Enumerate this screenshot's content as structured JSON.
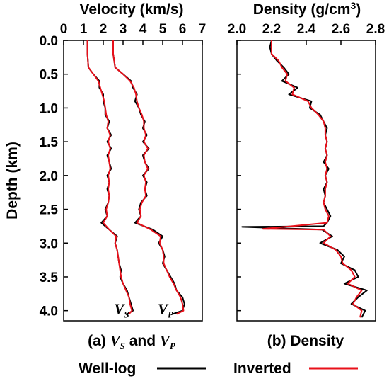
{
  "chart_data": [
    {
      "type": "line",
      "panel_label": "(a)",
      "caption_parts": {
        "prefix": "(a) ",
        "var1": "V",
        "sub1": "S",
        "mid": " and ",
        "var2": "V",
        "sub2": "P"
      },
      "xlabel": "Velocity (km/s)",
      "ylabel": "Depth (km)",
      "xlim": [
        0,
        7
      ],
      "ylim": [
        0,
        4.15
      ],
      "y_inverted": true,
      "xticks": [
        "0",
        "1",
        "2",
        "3",
        "4",
        "5",
        "6",
        "7"
      ],
      "yticks": [
        "0.0",
        "0.5",
        "1.0",
        "1.5",
        "2.0",
        "2.5",
        "3.0",
        "3.5",
        "4.0"
      ],
      "annotations": [
        {
          "var": "V",
          "sub": "S",
          "x": 2.55,
          "y": 4.05
        },
        {
          "var": "V",
          "sub": "P",
          "x": 4.75,
          "y": 4.05
        }
      ],
      "series": [
        {
          "name": "Well-log",
          "color": "#000000",
          "curves": {
            "Vs": {
              "depth": [
                0,
                0.2,
                0.4,
                0.5,
                0.6,
                0.7,
                0.8,
                0.9,
                1.0,
                1.1,
                1.2,
                1.3,
                1.4,
                1.5,
                1.6,
                1.7,
                1.8,
                1.9,
                2.0,
                2.1,
                2.2,
                2.3,
                2.4,
                2.5,
                2.6,
                2.7,
                2.8,
                2.9,
                3.0,
                3.1,
                3.2,
                3.3,
                3.4,
                3.5,
                3.6,
                3.7,
                3.8,
                3.9,
                4.0,
                4.05
              ],
              "value": [
                1.2,
                1.2,
                1.25,
                1.5,
                1.8,
                1.8,
                2.0,
                2.0,
                2.1,
                2.1,
                2.3,
                2.2,
                2.4,
                2.2,
                2.4,
                2.2,
                2.3,
                2.4,
                2.2,
                2.3,
                2.2,
                2.3,
                2.25,
                2.1,
                2.2,
                1.9,
                2.3,
                2.7,
                2.6,
                2.7,
                2.75,
                2.8,
                2.9,
                2.85,
                3.0,
                3.2,
                3.3,
                3.4,
                3.5,
                3.2
              ]
            },
            "Vp": {
              "depth": [
                0,
                0.2,
                0.4,
                0.5,
                0.6,
                0.7,
                0.8,
                0.9,
                1.0,
                1.1,
                1.2,
                1.3,
                1.4,
                1.5,
                1.6,
                1.7,
                1.8,
                1.9,
                2.0,
                2.1,
                2.2,
                2.3,
                2.4,
                2.5,
                2.6,
                2.7,
                2.8,
                2.9,
                3.0,
                3.1,
                3.2,
                3.3,
                3.4,
                3.5,
                3.6,
                3.7,
                3.8,
                3.9,
                4.0,
                4.05
              ],
              "value": [
                2.5,
                2.5,
                2.6,
                3.0,
                3.4,
                3.5,
                3.7,
                3.6,
                3.8,
                3.9,
                4.1,
                4.0,
                4.2,
                4.0,
                4.3,
                4.0,
                4.1,
                4.3,
                4.0,
                4.2,
                4.1,
                4.2,
                3.9,
                3.8,
                3.9,
                3.6,
                4.5,
                5.0,
                4.8,
                5.0,
                5.1,
                5.0,
                5.2,
                5.4,
                5.6,
                5.7,
                6.0,
                6.1,
                6.0,
                5.5
              ]
            }
          }
        },
        {
          "name": "Inverted",
          "color": "#e8101a",
          "curves": {
            "Vs": {
              "depth": [
                0,
                0.2,
                0.4,
                0.5,
                0.6,
                0.7,
                0.8,
                0.9,
                1.0,
                1.1,
                1.2,
                1.3,
                1.4,
                1.5,
                1.6,
                1.7,
                1.8,
                1.9,
                2.0,
                2.1,
                2.2,
                2.3,
                2.4,
                2.5,
                2.6,
                2.7,
                2.8,
                2.9,
                3.0,
                3.1,
                3.2,
                3.3,
                3.4,
                3.5,
                3.6,
                3.7,
                3.8,
                3.9,
                4.0,
                4.05
              ],
              "value": [
                1.2,
                1.2,
                1.25,
                1.5,
                1.75,
                1.85,
                1.95,
                2.05,
                2.1,
                2.15,
                2.25,
                2.2,
                2.35,
                2.25,
                2.35,
                2.25,
                2.3,
                2.35,
                2.25,
                2.3,
                2.25,
                2.3,
                2.25,
                2.15,
                2.2,
                2.0,
                2.3,
                2.65,
                2.6,
                2.7,
                2.75,
                2.8,
                2.85,
                2.9,
                3.0,
                3.15,
                3.3,
                3.35,
                3.45,
                3.3
              ]
            },
            "Vp": {
              "depth": [
                0,
                0.2,
                0.4,
                0.5,
                0.6,
                0.7,
                0.8,
                0.9,
                1.0,
                1.1,
                1.2,
                1.3,
                1.4,
                1.5,
                1.6,
                1.7,
                1.8,
                1.9,
                2.0,
                2.1,
                2.2,
                2.3,
                2.4,
                2.5,
                2.6,
                2.7,
                2.8,
                2.9,
                3.0,
                3.1,
                3.2,
                3.3,
                3.4,
                3.5,
                3.6,
                3.7,
                3.8,
                3.9,
                4.0,
                4.05
              ],
              "value": [
                2.5,
                2.5,
                2.6,
                3.0,
                3.35,
                3.55,
                3.65,
                3.7,
                3.8,
                3.95,
                4.05,
                4.05,
                4.15,
                4.05,
                4.25,
                4.05,
                4.1,
                4.25,
                4.05,
                4.15,
                4.1,
                4.15,
                3.95,
                3.85,
                3.9,
                3.7,
                4.4,
                4.9,
                4.85,
                5.0,
                5.05,
                5.05,
                5.2,
                5.35,
                5.55,
                5.7,
                5.9,
                6.0,
                6.05,
                5.7
              ]
            }
          }
        }
      ]
    },
    {
      "type": "line",
      "panel_label": "(b)",
      "caption": "(b) Density",
      "xlabel_parts": {
        "text": "Density (g/cm",
        "sup": "3",
        "close": ")"
      },
      "xlim": [
        2.0,
        2.8
      ],
      "ylim": [
        0,
        4.15
      ],
      "y_inverted": true,
      "xticks": [
        "2.0",
        "2.2",
        "2.4",
        "2.6",
        "2.8"
      ],
      "series": [
        {
          "name": "Well-log",
          "color": "#000000",
          "depth": [
            0,
            0.1,
            0.2,
            0.3,
            0.4,
            0.5,
            0.6,
            0.7,
            0.8,
            0.9,
            1.0,
            1.1,
            1.2,
            1.3,
            1.4,
            1.5,
            1.6,
            1.7,
            1.8,
            1.9,
            2.0,
            2.1,
            2.2,
            2.3,
            2.4,
            2.5,
            2.6,
            2.7,
            2.75,
            2.76,
            2.8,
            2.9,
            3.0,
            3.1,
            3.2,
            3.3,
            3.4,
            3.5,
            3.6,
            3.7,
            3.8,
            3.9,
            4.0,
            4.1
          ],
          "value": [
            2.2,
            2.19,
            2.2,
            2.23,
            2.27,
            2.3,
            2.26,
            2.35,
            2.3,
            2.43,
            2.42,
            2.48,
            2.5,
            2.52,
            2.51,
            2.52,
            2.51,
            2.52,
            2.5,
            2.53,
            2.51,
            2.52,
            2.5,
            2.51,
            2.5,
            2.52,
            2.54,
            2.52,
            2.5,
            2.03,
            2.49,
            2.55,
            2.48,
            2.58,
            2.62,
            2.6,
            2.68,
            2.7,
            2.62,
            2.75,
            2.7,
            2.66,
            2.74,
            2.72
          ]
        },
        {
          "name": "Inverted",
          "color": "#e8101a",
          "depth": [
            0,
            0.1,
            0.2,
            0.3,
            0.4,
            0.5,
            0.6,
            0.7,
            0.8,
            0.9,
            1.0,
            1.1,
            1.2,
            1.3,
            1.4,
            1.5,
            1.6,
            1.7,
            1.8,
            1.9,
            2.0,
            2.1,
            2.2,
            2.3,
            2.4,
            2.5,
            2.6,
            2.7,
            2.79,
            2.8,
            2.9,
            3.0,
            3.1,
            3.2,
            3.3,
            3.4,
            3.5,
            3.6,
            3.7,
            3.8,
            3.9,
            4.0,
            4.1
          ],
          "value": [
            2.2,
            2.2,
            2.2,
            2.24,
            2.26,
            2.29,
            2.28,
            2.33,
            2.32,
            2.41,
            2.43,
            2.47,
            2.5,
            2.51,
            2.51,
            2.52,
            2.51,
            2.52,
            2.51,
            2.52,
            2.51,
            2.52,
            2.51,
            2.51,
            2.5,
            2.51,
            2.53,
            2.52,
            2.15,
            2.5,
            2.54,
            2.5,
            2.57,
            2.6,
            2.61,
            2.66,
            2.68,
            2.64,
            2.72,
            2.69,
            2.67,
            2.72,
            2.71
          ]
        }
      ]
    }
  ],
  "legend": {
    "items": [
      {
        "label": "Well-log",
        "color": "#000000"
      },
      {
        "label": "Inverted",
        "color": "#e8101a"
      }
    ]
  }
}
